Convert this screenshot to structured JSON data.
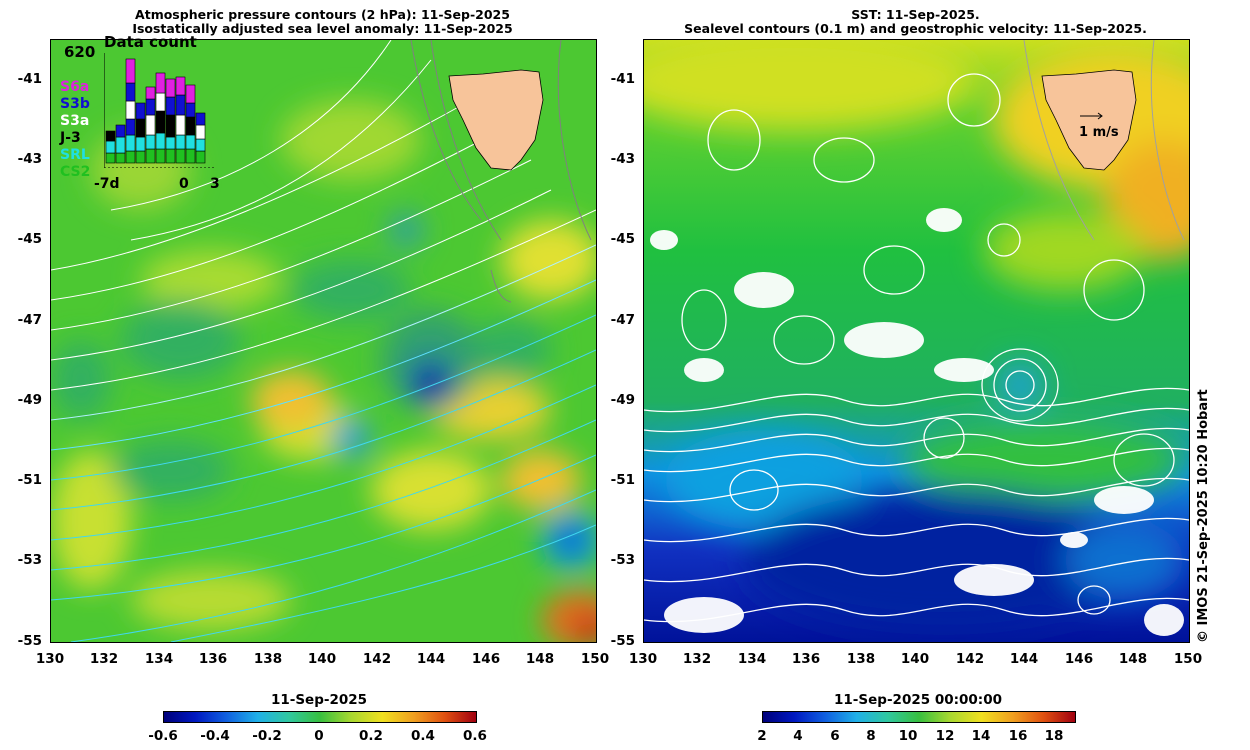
{
  "left_panel": {
    "title_line1": "Atmospheric pressure contours (2 hPa): 11-Sep-2025",
    "title_line2": "Isostatically adjusted sea level anomaly: 11-Sep-2025",
    "inset": {
      "title": "Data count",
      "max_label": "620",
      "legend": [
        {
          "label": "S6a",
          "color": "#e020e0"
        },
        {
          "label": "S3b",
          "color": "#1010d0"
        },
        {
          "label": "S3a",
          "color": "#ffffff"
        },
        {
          "label": "J-3",
          "color": "#000000"
        },
        {
          "label": "SRL",
          "color": "#20e0e0"
        },
        {
          "label": "CS2",
          "color": "#20c020"
        }
      ],
      "x_labels": [
        "-7d",
        "0",
        "3"
      ]
    },
    "colorbar": {
      "title": "11-Sep-2025",
      "ticks": [
        "-0.6",
        "-0.4",
        "-0.2",
        "0",
        "0.2",
        "0.4",
        "0.6"
      ]
    }
  },
  "right_panel": {
    "title_line1": "SST: 11-Sep-2025.",
    "title_line2": "Sealevel contours (0.1 m) and geostrophic velocity: 11-Sep-2025.",
    "velocity_scale_label": "1 m/s",
    "colorbar": {
      "title": "11-Sep-2025 00:00:00",
      "ticks": [
        "2",
        "4",
        "6",
        "8",
        "10",
        "12",
        "14",
        "16",
        "18"
      ]
    }
  },
  "axes": {
    "y_ticks": [
      "-41",
      "-43",
      "-45",
      "-47",
      "-49",
      "-51",
      "-53",
      "-55"
    ],
    "x_ticks": [
      "130",
      "132",
      "134",
      "136",
      "138",
      "140",
      "142",
      "144",
      "146",
      "148",
      "150"
    ]
  },
  "credit": "© IMOS 21-Sep-2025 10:20 Hobart",
  "colors": {
    "land": "#f7c49a",
    "sla_base": "#4cc832",
    "sst_warm": "#f0e020",
    "sst_cold": "#0018a0"
  }
}
